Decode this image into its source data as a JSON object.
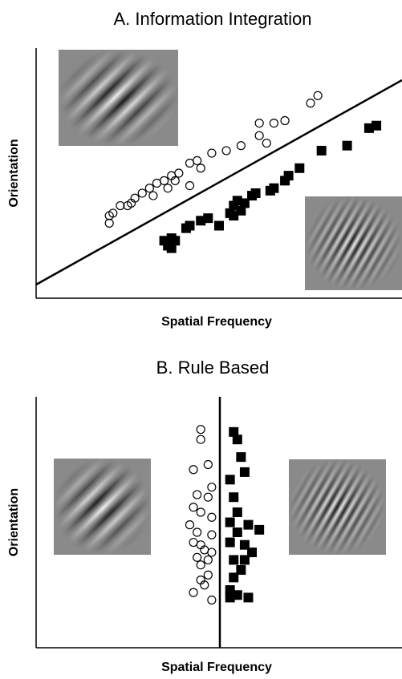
{
  "chart_data": [
    {
      "type": "scatter",
      "title": "A. Information Integration",
      "xlabel": "Spatial Frequency",
      "ylabel": "Orientation",
      "xlim": [
        0,
        100
      ],
      "ylim": [
        0,
        100
      ],
      "series": [
        {
          "marker": "circle-open",
          "color": "#000000",
          "x": [
            20,
            20,
            21,
            23,
            25,
            26,
            27,
            29,
            31,
            32,
            33,
            35,
            36,
            37,
            38,
            39,
            42,
            42,
            44,
            45,
            48,
            52,
            56,
            61,
            61,
            63,
            65,
            68,
            75,
            77
          ],
          "y": [
            33,
            30,
            34,
            37,
            37,
            38,
            40,
            42,
            44,
            41,
            46,
            47,
            44,
            49,
            47,
            50,
            45,
            54,
            55,
            52,
            58,
            59,
            61,
            70,
            65,
            62,
            70,
            71,
            78,
            81
          ]
        },
        {
          "marker": "square-filled",
          "color": "#000000",
          "x": [
            35,
            36,
            37,
            37,
            38,
            41,
            42,
            45,
            47,
            50,
            53,
            54,
            55,
            56,
            57,
            59,
            60,
            64,
            65,
            68,
            69,
            72,
            78,
            85,
            91,
            93,
            54
          ],
          "y": [
            23,
            21,
            20,
            24,
            23,
            28,
            29,
            31,
            32,
            29,
            34,
            37,
            39,
            35,
            38,
            41,
            42,
            43,
            44,
            47,
            49,
            52,
            59,
            61,
            68,
            69,
            33
          ]
        }
      ]
    },
    {
      "type": "scatter",
      "title": "B. Rule Based",
      "xlabel": "Spatial Frequency",
      "ylabel": "Orientation",
      "xlim": [
        0,
        100
      ],
      "ylim": [
        0,
        100
      ],
      "series": [
        {
          "marker": "circle-open",
          "color": "#000000",
          "x": [
            45,
            45,
            47,
            43,
            48,
            44,
            47,
            43,
            45,
            48,
            42,
            44,
            48,
            43,
            46,
            48,
            44,
            45,
            47,
            45,
            46,
            43,
            48,
            45,
            47
          ],
          "y": [
            87,
            83,
            73,
            71,
            64,
            61,
            60,
            56,
            54,
            52,
            49,
            46,
            45,
            42,
            39,
            38,
            36,
            33,
            29,
            27,
            25,
            22,
            19,
            41,
            35
          ]
        },
        {
          "marker": "square-filled",
          "color": "#000000",
          "x": [
            54,
            55,
            56,
            53,
            57,
            54,
            55,
            53,
            58,
            55,
            61,
            53,
            57,
            59,
            54,
            56,
            54,
            53,
            55,
            58,
            53,
            57
          ],
          "y": [
            86,
            83,
            76,
            67,
            70,
            60,
            54,
            50,
            49,
            46,
            47,
            42,
            41,
            38,
            35,
            31,
            28,
            23,
            21,
            20,
            20,
            35
          ]
        }
      ]
    }
  ]
}
